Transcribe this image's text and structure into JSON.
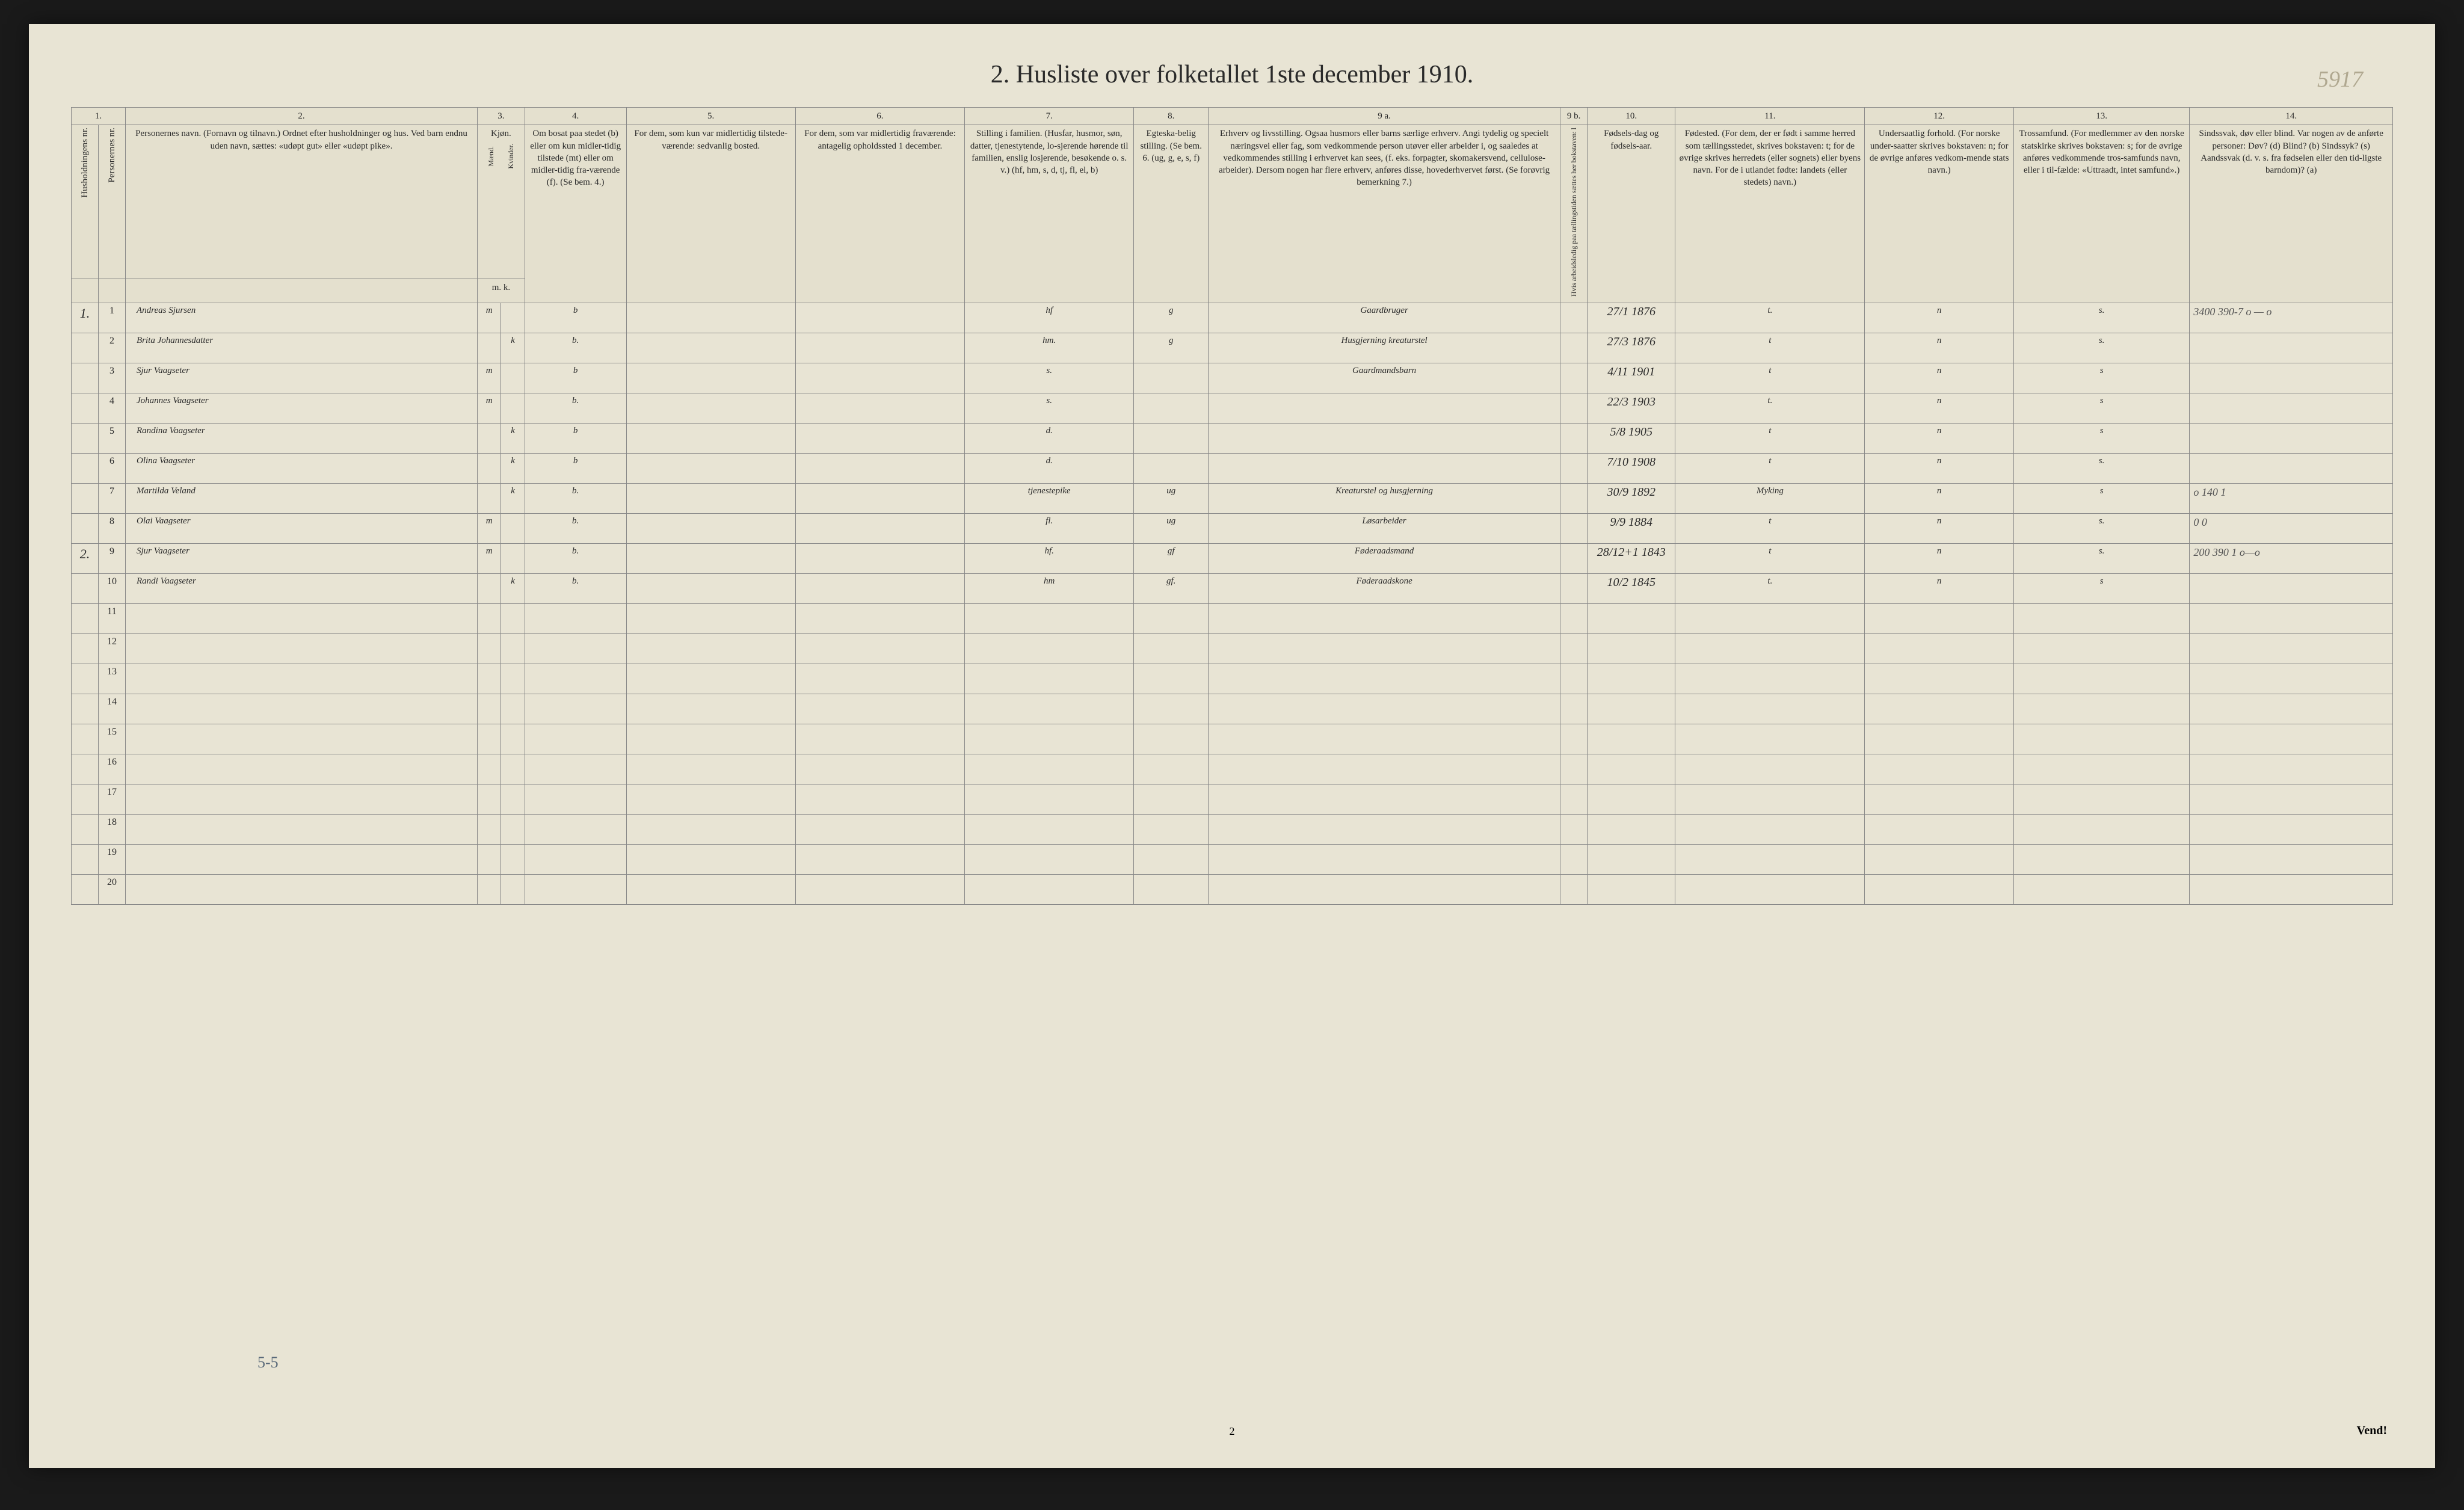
{
  "title": "2. Husliste over folketallet 1ste december 1910.",
  "annotation_topright": "5917",
  "footer_left": "5-5",
  "footer_center": "2",
  "footer_right": "Vend!",
  "colnums": [
    "1.",
    "2.",
    "3.",
    "4.",
    "5.",
    "6.",
    "7.",
    "8.",
    "9 a.",
    "9 b.",
    "10.",
    "11.",
    "12.",
    "13.",
    "14."
  ],
  "headers": {
    "c1a": "Husholdningens nr.",
    "c1b": "Personernes nr.",
    "c2": "Personernes navn.\n(Fornavn og tilnavn.)\nOrdnet efter husholdninger og hus.\nVed barn endnu uden navn, sættes: «udøpt gut» eller «udøpt pike».",
    "c3": "Kjøn.",
    "c3a": "Mænd.",
    "c3b": "Kvinder.",
    "c3sub": "m.  k.",
    "c4": "Om bosat paa stedet (b) eller om kun midler-tidig tilstede (mt) eller om midler-tidig fra-værende (f). (Se bem. 4.)",
    "c5": "For dem, som kun var midlertidig tilstede-værende:\n\nsedvanlig bosted.",
    "c6": "For dem, som var midlertidig fraværende:\n\nantagelig opholdssted 1 december.",
    "c7": "Stilling i familien.\n(Husfar, husmor, søn, datter, tjenestytende, lo-sjerende hørende til familien, enslig losjerende, besøkende o. s. v.)\n(hf, hm, s, d, tj, fl, el, b)",
    "c8": "Egteska-belig stilling. (Se bem. 6. (ug, g, e, s, f)",
    "c9a": "Erhverv og livsstilling.\nOgsaa husmors eller barns særlige erhverv. Angi tydelig og specielt næringsvei eller fag, som vedkommende person utøver eller arbeider i, og saaledes at vedkommendes stilling i erhvervet kan sees, (f. eks. forpagter, skomakersvend, cellulose-arbeider). Dersom nogen har flere erhverv, anføres disse, hovederhvervet først. (Se forøvrig bemerkning 7.)",
    "c9b": "Hvis arbeidsledig paa tællingstiden sættes her bokstaven: l",
    "c10": "Fødsels-dag og fødsels-aar.",
    "c11": "Fødested.\n(For dem, der er født i samme herred som tællingsstedet, skrives bokstaven: t; for de øvrige skrives herredets (eller sognets) eller byens navn. For de i utlandet fødte: landets (eller stedets) navn.)",
    "c12": "Undersaatlig forhold.\n(For norske under-saatter skrives bokstaven: n; for de øvrige anføres vedkom-mende stats navn.)",
    "c13": "Trossamfund.\n(For medlemmer av den norske statskirke skrives bokstaven: s; for de øvrige anføres vedkommende tros-samfunds navn, eller i til-fælde: «Uttraadt, intet samfund».)",
    "c14": "Sindssvak, døv eller blind.\nVar nogen av de anførte personer:\nDøv? (d)\nBlind? (b)\nSindssyk? (s)\nAandssvak (d. v. s. fra fødselen eller den tid-ligste barndom)? (a)"
  },
  "rows": [
    {
      "hh": "1.",
      "n": "1",
      "name": "Andreas Sjursen",
      "sex": "m",
      "res": "b",
      "fam": "hf",
      "mar": "g",
      "occ": "Gaardbruger",
      "dob": "27/1 1876",
      "birth": "t.",
      "nat": "n",
      "rel": "s.",
      "margin": "3400 390-7  o — o"
    },
    {
      "hh": "",
      "n": "2",
      "name": "Brita Johannesdatter",
      "sex": "k",
      "res": "b.",
      "fam": "hm.",
      "mar": "g",
      "occ": "Husgjerning kreaturstel",
      "dob": "27/3 1876",
      "birth": "t",
      "nat": "n",
      "rel": "s.",
      "margin": ""
    },
    {
      "hh": "",
      "n": "3",
      "name": "Sjur Vaagseter",
      "sex": "m",
      "res": "b",
      "fam": "s.",
      "mar": "",
      "occ": "Gaardmandsbarn",
      "dob": "4/11 1901",
      "birth": "t",
      "nat": "n",
      "rel": "s",
      "margin": ""
    },
    {
      "hh": "",
      "n": "4",
      "name": "Johannes Vaagseter",
      "sex": "m",
      "res": "b.",
      "fam": "s.",
      "mar": "",
      "occ": "",
      "dob": "22/3 1903",
      "birth": "t.",
      "nat": "n",
      "rel": "s",
      "margin": ""
    },
    {
      "hh": "",
      "n": "5",
      "name": "Randina Vaagseter",
      "sex": "k",
      "res": "b",
      "fam": "d.",
      "mar": "",
      "occ": "",
      "dob": "5/8 1905",
      "birth": "t",
      "nat": "n",
      "rel": "s",
      "margin": ""
    },
    {
      "hh": "",
      "n": "6",
      "name": "Olina Vaagseter",
      "sex": "k",
      "res": "b",
      "fam": "d.",
      "mar": "",
      "occ": "",
      "dob": "7/10 1908",
      "birth": "t",
      "nat": "n",
      "rel": "s.",
      "margin": ""
    },
    {
      "hh": "",
      "n": "7",
      "name": "Martilda Veland",
      "sex": "k",
      "res": "b.",
      "fam": "tjenestepike",
      "mar": "ug",
      "occ": "Kreaturstel og husgjerning",
      "dob": "30/9 1892",
      "birth": "Myking",
      "nat": "n",
      "rel": "s",
      "margin": "o   140  1"
    },
    {
      "hh": "",
      "n": "8",
      "name": "Olai Vaagseter",
      "sex": "m",
      "res": "b.",
      "fam": "fl.",
      "mar": "ug",
      "occ": "Løsarbeider",
      "dob": "9/9 1884",
      "birth": "t",
      "nat": "n",
      "rel": "s.",
      "margin": "0   0"
    },
    {
      "hh": "2.",
      "n": "9",
      "name": "Sjur Vaagseter",
      "sex": "m",
      "res": "b.",
      "fam": "hf.",
      "mar": "gf",
      "occ": "Føderaadsmand",
      "dob": "28/12+1 1843",
      "birth": "t",
      "nat": "n",
      "rel": "s.",
      "margin": "200  390  1  o—o"
    },
    {
      "hh": "",
      "n": "10",
      "name": "Randi Vaagseter",
      "sex": "k",
      "res": "b.",
      "fam": "hm",
      "mar": "gf.",
      "occ": "Føderaadskone",
      "dob": "10/2 1845",
      "birth": "t.",
      "nat": "n",
      "rel": "s",
      "margin": ""
    }
  ],
  "emptyRows": [
    "11",
    "12",
    "13",
    "14",
    "15",
    "16",
    "17",
    "18",
    "19",
    "20"
  ]
}
